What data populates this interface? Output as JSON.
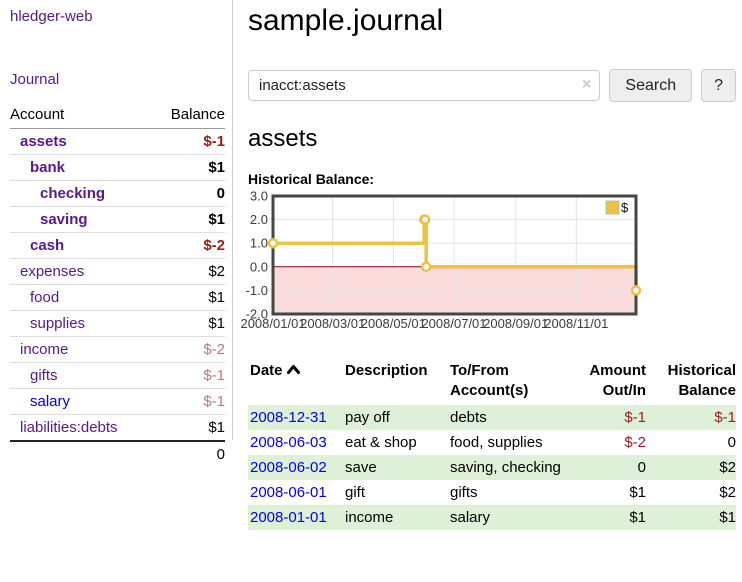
{
  "app": {
    "title": "hledger-web"
  },
  "colors": {
    "link_purple": "#551a8b",
    "link_blue": "#0000ee",
    "negative_strong": "#9b1c1c",
    "negative_muted": "#ba7a7a",
    "row_stripe_green": "#dff0d8",
    "chart_line": "#edc240",
    "chart_negative_region": "#fbdcdc",
    "chart_zero_line": "#8b0000"
  },
  "sidebar": {
    "journal_link": "Journal",
    "accounts_table": {
      "headers": [
        "Account",
        "Balance"
      ],
      "rows": [
        {
          "name": "assets",
          "level": 1,
          "bold": true,
          "balance": "$-1",
          "balance_style": "neg-strong"
        },
        {
          "name": "bank",
          "level": 2,
          "bold": true,
          "balance": "$1",
          "balance_style": "pos-strong"
        },
        {
          "name": "checking",
          "level": 3,
          "bold": true,
          "balance": "0",
          "balance_style": "pos-strong"
        },
        {
          "name": "saving",
          "level": 3,
          "bold": true,
          "balance": "$1",
          "balance_style": "pos-strong"
        },
        {
          "name": "cash",
          "level": 2,
          "bold": true,
          "balance": "$-2",
          "balance_style": "neg-strong"
        },
        {
          "name": "expenses",
          "level": 1,
          "bold": false,
          "balance": "$2",
          "balance_style": "pos"
        },
        {
          "name": "food",
          "level": 2,
          "bold": false,
          "balance": "$1",
          "balance_style": "pos"
        },
        {
          "name": "supplies",
          "level": 2,
          "bold": false,
          "balance": "$1",
          "balance_style": "pos"
        },
        {
          "name": "income",
          "level": 1,
          "bold": false,
          "balance": "$-2",
          "balance_style": "neg-muted"
        },
        {
          "name": "gifts",
          "level": 2,
          "bold": false,
          "balance": "$-1",
          "balance_style": "neg-muted"
        },
        {
          "name": "salary",
          "level": 2,
          "bold": false,
          "link_color": "blue",
          "balance": "$-1",
          "balance_style": "neg-muted"
        },
        {
          "name": "liabilities:debts",
          "level": 1,
          "bold": false,
          "balance": "$1",
          "balance_style": "pos"
        }
      ],
      "total": "0"
    }
  },
  "main": {
    "title": "sample.journal",
    "search": {
      "query": "inacct:assets",
      "clear_icon": "×",
      "search_button": "Search",
      "help_button": "?"
    },
    "account_heading": "assets",
    "chart_label": "Historical Balance:"
  },
  "chart_data": {
    "type": "line",
    "step": true,
    "title": "Historical Balance:",
    "series": [
      {
        "name": "$",
        "color": "#edc240",
        "points": [
          {
            "date": "2008-01-01",
            "value": 1
          },
          {
            "date": "2008-06-01",
            "value": 2
          },
          {
            "date": "2008-06-02",
            "value": 2
          },
          {
            "date": "2008-06-03",
            "value": 0
          },
          {
            "date": "2008-12-31",
            "value": -1
          }
        ]
      }
    ],
    "x_range": [
      "2008-01-01",
      "2008-12-31"
    ],
    "x_ticks": [
      {
        "label": "2008/01/01",
        "date": "2008-01-01"
      },
      {
        "label": "2008/03/01",
        "date": "2008-03-01"
      },
      {
        "label": "2008/05/01",
        "date": "2008-05-01"
      },
      {
        "label": "2008/07/01",
        "date": "2008-07-01"
      },
      {
        "label": "2008/09/01",
        "date": "2008-09-01"
      },
      {
        "label": "2008/11/01",
        "date": "2008-11-01"
      }
    ],
    "y_ticks": [
      "3.0",
      "2.0",
      "1.0",
      "0.0",
      "-1.0",
      "-2.0"
    ],
    "ylim": [
      -2,
      3
    ],
    "grid": true,
    "legend_position": "top-right",
    "zero_line_color": "#8b0000",
    "negative_region_color": "#fbdcdc",
    "marker": {
      "fill": "#ffffff",
      "stroke": "#edc240"
    }
  },
  "register_table": {
    "headers": [
      "Date",
      "Description",
      "To/From Account(s)",
      "Amount Out/In",
      "Historical Balance"
    ],
    "sort": {
      "column": "Date",
      "direction": "ascending"
    },
    "rows": [
      {
        "date": "2008-12-31",
        "description": "pay off",
        "accounts": "debts",
        "amount": "$-1",
        "amount_negative": true,
        "balance": "$-1",
        "balance_negative": true
      },
      {
        "date": "2008-06-03",
        "description": "eat & shop",
        "accounts": "food, supplies",
        "amount": "$-2",
        "amount_negative": true,
        "balance": "0",
        "balance_negative": false
      },
      {
        "date": "2008-06-02",
        "description": "save",
        "accounts": "saving, checking",
        "amount": "0",
        "amount_negative": false,
        "balance": "$2",
        "balance_negative": false
      },
      {
        "date": "2008-06-01",
        "description": "gift",
        "accounts": "gifts",
        "amount": "$1",
        "amount_negative": false,
        "balance": "$2",
        "balance_negative": false
      },
      {
        "date": "2008-01-01",
        "description": "income",
        "accounts": "salary",
        "amount": "$1",
        "amount_negative": false,
        "balance": "$1",
        "balance_negative": false
      }
    ]
  }
}
